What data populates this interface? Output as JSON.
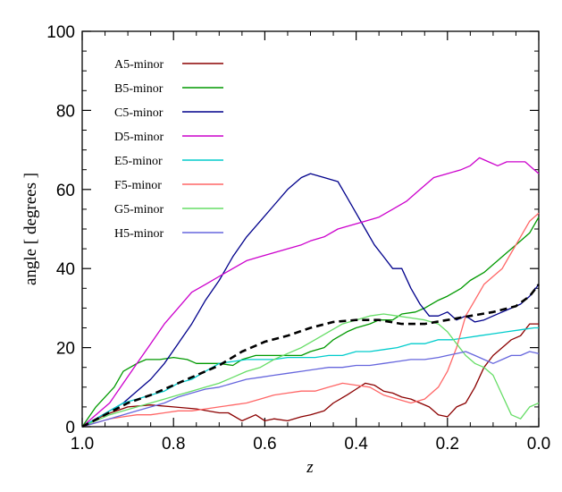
{
  "chart_data": {
    "type": "line",
    "xlabel": "z",
    "ylabel": "angle [ degrees ]",
    "xlim": [
      1.0,
      0.0
    ],
    "ylim": [
      0,
      100
    ],
    "x_reversed": true,
    "grid": false,
    "legend_position": "top-left",
    "x_ticks": [
      "1.0",
      "0.8",
      "0.6",
      "0.4",
      "0.2",
      "0.0"
    ],
    "x_tick_values": [
      1.0,
      0.8,
      0.6,
      0.4,
      0.2,
      0.0
    ],
    "y_ticks": [
      "0",
      "20",
      "40",
      "60",
      "80",
      "100"
    ],
    "y_tick_values": [
      0,
      20,
      40,
      60,
      80,
      100
    ],
    "series": [
      {
        "name": "A5-minor",
        "color": "#8b0000",
        "dash": false,
        "x": [
          1.0,
          0.95,
          0.9,
          0.85,
          0.8,
          0.75,
          0.7,
          0.68,
          0.65,
          0.62,
          0.6,
          0.58,
          0.55,
          0.52,
          0.5,
          0.47,
          0.45,
          0.42,
          0.4,
          0.38,
          0.36,
          0.34,
          0.32,
          0.3,
          0.28,
          0.26,
          0.24,
          0.22,
          0.2,
          0.18,
          0.16,
          0.14,
          0.12,
          0.1,
          0.08,
          0.06,
          0.04,
          0.02,
          0.0
        ],
        "y": [
          0,
          3,
          5,
          5.5,
          5,
          4.5,
          3.5,
          3.5,
          1.5,
          3,
          1.5,
          2,
          1.5,
          2.5,
          3,
          4,
          6,
          8,
          9.5,
          11,
          10.5,
          9,
          8.5,
          7.5,
          7,
          6,
          5,
          3,
          2.5,
          5,
          6,
          10,
          15,
          18,
          20,
          22,
          23,
          26,
          26
        ]
      },
      {
        "name": "B5-minor",
        "color": "#009900",
        "dash": false,
        "x": [
          1.0,
          0.97,
          0.93,
          0.91,
          0.88,
          0.86,
          0.83,
          0.8,
          0.77,
          0.75,
          0.72,
          0.7,
          0.67,
          0.65,
          0.62,
          0.6,
          0.57,
          0.55,
          0.52,
          0.5,
          0.47,
          0.45,
          0.42,
          0.4,
          0.37,
          0.35,
          0.32,
          0.3,
          0.27,
          0.25,
          0.22,
          0.2,
          0.17,
          0.15,
          0.12,
          0.1,
          0.07,
          0.05,
          0.02,
          0.0
        ],
        "y": [
          0,
          5,
          10,
          14,
          16,
          17,
          17,
          17.5,
          17,
          16,
          16,
          16,
          15.5,
          17,
          18,
          18,
          18,
          18,
          18,
          19,
          20,
          22,
          24,
          25,
          26,
          27,
          27,
          28.5,
          29,
          30,
          32,
          33,
          35,
          37,
          39,
          41,
          44,
          46,
          49,
          53
        ]
      },
      {
        "name": "C5-minor",
        "color": "#00008b",
        "dash": false,
        "x": [
          1.0,
          0.97,
          0.94,
          0.91,
          0.88,
          0.85,
          0.82,
          0.79,
          0.76,
          0.73,
          0.7,
          0.67,
          0.64,
          0.61,
          0.58,
          0.55,
          0.52,
          0.5,
          0.47,
          0.44,
          0.42,
          0.4,
          0.38,
          0.36,
          0.34,
          0.32,
          0.3,
          0.28,
          0.26,
          0.24,
          0.22,
          0.2,
          0.18,
          0.16,
          0.14,
          0.12,
          0.1,
          0.08,
          0.06,
          0.04,
          0.02,
          0.0
        ],
        "y": [
          0,
          2,
          4,
          6,
          9,
          12,
          16,
          21,
          26,
          32,
          37,
          43,
          48,
          52,
          56,
          60,
          63,
          64,
          63,
          62,
          58,
          54,
          50,
          46,
          43,
          40,
          40,
          35,
          31,
          28,
          28,
          29,
          27,
          28,
          26.5,
          27,
          28,
          29,
          30,
          31,
          33,
          36
        ]
      },
      {
        "name": "D5-minor",
        "color": "#cc00cc",
        "dash": false,
        "x": [
          1.0,
          0.97,
          0.94,
          0.91,
          0.88,
          0.85,
          0.82,
          0.79,
          0.76,
          0.73,
          0.7,
          0.67,
          0.64,
          0.61,
          0.58,
          0.55,
          0.52,
          0.5,
          0.47,
          0.44,
          0.41,
          0.38,
          0.35,
          0.32,
          0.29,
          0.26,
          0.23,
          0.2,
          0.17,
          0.15,
          0.13,
          0.11,
          0.09,
          0.07,
          0.05,
          0.03,
          0.01,
          0.0
        ],
        "y": [
          0,
          3,
          6,
          11,
          16,
          21,
          26,
          30,
          34,
          36,
          38,
          40,
          42,
          43,
          44,
          45,
          46,
          47,
          48,
          50,
          51,
          52,
          53,
          55,
          57,
          60,
          63,
          64,
          65,
          66,
          68,
          67,
          66,
          67,
          67,
          67,
          65,
          64
        ]
      },
      {
        "name": "E5-minor",
        "color": "#00cccc",
        "dash": false,
        "x": [
          1.0,
          0.97,
          0.94,
          0.91,
          0.88,
          0.85,
          0.82,
          0.79,
          0.76,
          0.73,
          0.7,
          0.67,
          0.64,
          0.61,
          0.58,
          0.55,
          0.52,
          0.49,
          0.46,
          0.43,
          0.4,
          0.37,
          0.34,
          0.31,
          0.28,
          0.25,
          0.22,
          0.19,
          0.16,
          0.13,
          0.1,
          0.07,
          0.04,
          0.01,
          0.0
        ],
        "y": [
          0,
          2,
          4,
          6,
          7,
          8,
          9,
          11,
          12,
          14,
          16,
          16.5,
          17,
          17,
          17,
          17.5,
          17.5,
          17.5,
          18,
          18,
          19,
          19,
          19.5,
          20,
          21,
          21,
          22,
          22,
          22.5,
          23,
          23.5,
          24,
          24.5,
          25,
          25
        ]
      },
      {
        "name": "F5-minor",
        "color": "#ff6666",
        "dash": false,
        "x": [
          1.0,
          0.97,
          0.94,
          0.91,
          0.88,
          0.85,
          0.82,
          0.79,
          0.76,
          0.73,
          0.7,
          0.67,
          0.64,
          0.61,
          0.58,
          0.55,
          0.52,
          0.49,
          0.46,
          0.43,
          0.4,
          0.37,
          0.34,
          0.31,
          0.28,
          0.25,
          0.22,
          0.2,
          0.18,
          0.16,
          0.14,
          0.12,
          0.1,
          0.08,
          0.06,
          0.04,
          0.02,
          0.0
        ],
        "y": [
          0,
          1,
          2,
          2.5,
          3,
          3,
          3.5,
          4,
          4,
          4.5,
          5,
          5.5,
          6,
          7,
          8,
          8.5,
          9,
          9,
          10,
          11,
          10.5,
          10,
          8,
          7,
          6,
          7,
          10,
          14,
          20,
          28,
          32,
          36,
          38,
          40,
          44,
          48,
          52,
          54
        ]
      },
      {
        "name": "G5-minor",
        "color": "#66dd66",
        "dash": false,
        "x": [
          1.0,
          0.97,
          0.94,
          0.91,
          0.88,
          0.85,
          0.82,
          0.79,
          0.76,
          0.73,
          0.7,
          0.67,
          0.64,
          0.61,
          0.58,
          0.55,
          0.52,
          0.49,
          0.46,
          0.43,
          0.4,
          0.37,
          0.34,
          0.31,
          0.28,
          0.25,
          0.22,
          0.2,
          0.18,
          0.16,
          0.14,
          0.12,
          0.1,
          0.08,
          0.06,
          0.04,
          0.02,
          0.0
        ],
        "y": [
          0,
          1.5,
          3,
          4,
          5,
          6,
          7,
          8,
          9,
          10,
          11,
          12.5,
          14,
          15,
          17,
          18.5,
          20,
          22,
          24,
          26,
          27,
          28,
          28.5,
          28,
          27.5,
          27,
          26,
          24,
          21,
          18,
          16,
          15,
          13,
          8,
          3,
          2,
          5,
          6
        ]
      },
      {
        "name": "H5-minor",
        "color": "#6666dd",
        "dash": false,
        "x": [
          1.0,
          0.97,
          0.94,
          0.91,
          0.88,
          0.85,
          0.82,
          0.79,
          0.76,
          0.73,
          0.7,
          0.67,
          0.64,
          0.61,
          0.58,
          0.55,
          0.52,
          0.49,
          0.46,
          0.43,
          0.4,
          0.37,
          0.34,
          0.31,
          0.28,
          0.25,
          0.22,
          0.2,
          0.18,
          0.16,
          0.14,
          0.12,
          0.1,
          0.08,
          0.06,
          0.04,
          0.02,
          0.0
        ],
        "y": [
          0,
          1,
          2,
          3,
          4,
          5,
          6,
          7.5,
          8.5,
          9.5,
          10,
          11,
          12,
          12.5,
          13,
          13.5,
          14,
          14.5,
          15,
          15,
          15.5,
          15.5,
          16,
          16.5,
          17,
          17,
          17.5,
          18,
          18.5,
          19,
          18,
          17,
          16,
          17,
          18,
          18,
          19,
          18.5
        ]
      },
      {
        "name": "",
        "color": "#000000",
        "dash": true,
        "x": [
          1.0,
          0.95,
          0.9,
          0.85,
          0.8,
          0.75,
          0.7,
          0.65,
          0.6,
          0.55,
          0.5,
          0.45,
          0.4,
          0.35,
          0.3,
          0.25,
          0.2,
          0.15,
          0.1,
          0.05,
          0.02,
          0.0
        ],
        "y": [
          0,
          3,
          6,
          8,
          10.5,
          13,
          15.5,
          19,
          21.5,
          23,
          25,
          26.5,
          27,
          27,
          26,
          26,
          27,
          28,
          29,
          30.5,
          33,
          36
        ]
      }
    ]
  }
}
